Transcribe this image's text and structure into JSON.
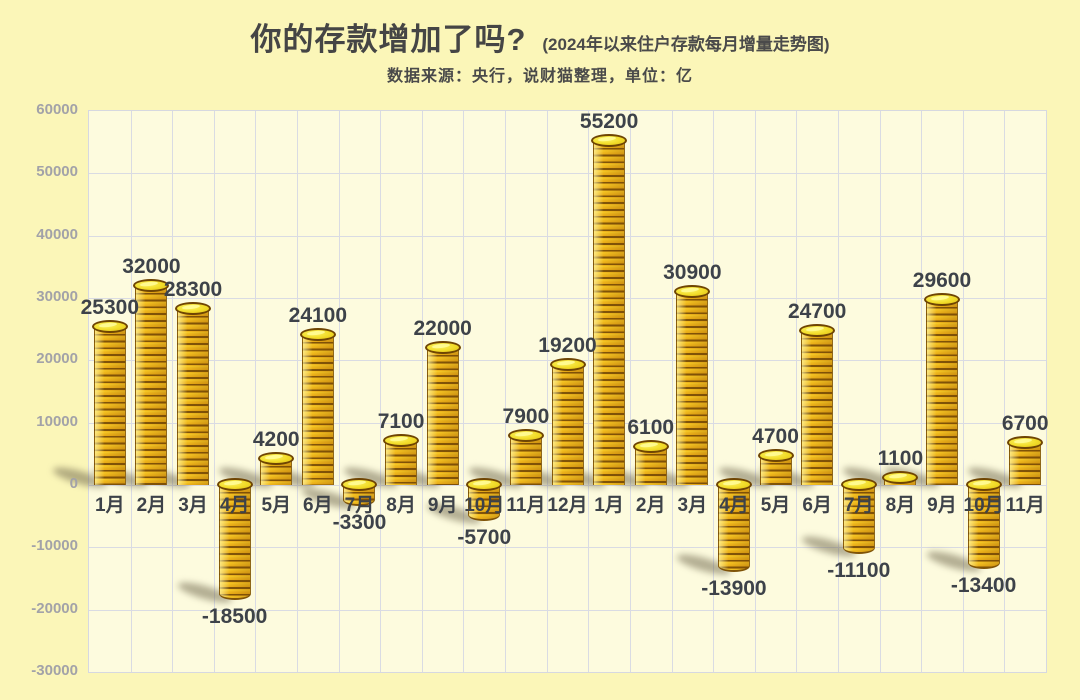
{
  "header": {
    "title": "你的存款增加了吗?",
    "title_suffix": "(2024年以来住户存款每月增量走势图)",
    "subtitle": "数据来源：央行，说财猫整理，单位：亿"
  },
  "chart_data": {
    "type": "bar",
    "title": "你的存款增加了吗?",
    "title_note": "(2024年以来住户存款每月增量走势图)",
    "source_note": "数据来源：央行，说财猫整理，单位：亿",
    "source": "央行，说财猫整理",
    "unit": "亿",
    "bar_visual": "gold-coin-stack",
    "grid": true,
    "legend_position": "none",
    "xlabel": "",
    "ylabel": "",
    "ylim": [
      -30000,
      60000
    ],
    "ytick_step": 10000,
    "yticks": [
      60000,
      50000,
      40000,
      30000,
      20000,
      10000,
      0,
      -10000,
      -20000,
      -30000
    ],
    "categories": [
      "1月",
      "2月",
      "3月",
      "4月",
      "5月",
      "6月",
      "7月",
      "8月",
      "9月",
      "10月",
      "11月",
      "12月",
      "1月",
      "2月",
      "3月",
      "4月",
      "5月",
      "6月",
      "7月",
      "8月",
      "9月",
      "10月",
      "11月"
    ],
    "values": [
      25300,
      32000,
      28300,
      -18500,
      4200,
      24100,
      -3300,
      7100,
      22000,
      -5700,
      7900,
      19200,
      55200,
      6100,
      30900,
      -13900,
      4700,
      24700,
      -11100,
      1100,
      29600,
      -13400,
      6700
    ],
    "colors": {
      "bg_outer": "#FBF6B8",
      "bg_plot": "#FDFBDE",
      "gridline": "#D9DBE3",
      "axis_label": "#A2A2A8",
      "value_label": "#3D4249",
      "coin_body": "#F3C121",
      "coin_ridge": "#7F5408",
      "coin_top": "#F2DC28",
      "title_color": "#454545"
    }
  }
}
